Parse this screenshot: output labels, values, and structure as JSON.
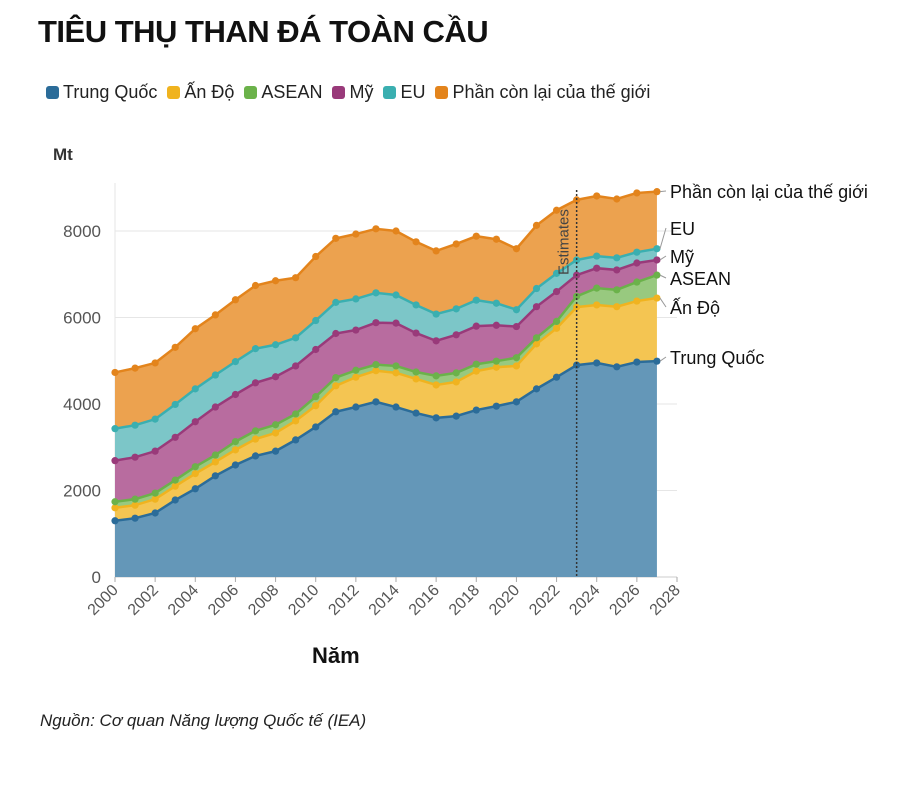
{
  "chart_data": {
    "type": "area",
    "stacked": true,
    "title": "TIÊU THỤ THAN ĐÁ TOÀN CẦU",
    "ylabel": "Mt",
    "xlabel": "Năm",
    "source": "Nguồn: Cơ quan Năng lượng Quốc tế (IEA)",
    "annotation": "Estimates",
    "annotation_x": 2023,
    "ylim": [
      0,
      9000
    ],
    "xlim": [
      2000,
      2028
    ],
    "yticks": [
      0,
      2000,
      4000,
      6000,
      8000
    ],
    "xticks": [
      2000,
      2002,
      2004,
      2006,
      2008,
      2010,
      2012,
      2014,
      2016,
      2018,
      2020,
      2022,
      2024,
      2026,
      2028
    ],
    "grid": true,
    "legend_position": "top",
    "x": [
      2000,
      2001,
      2002,
      2003,
      2004,
      2005,
      2006,
      2007,
      2008,
      2009,
      2010,
      2011,
      2012,
      2013,
      2014,
      2015,
      2016,
      2017,
      2018,
      2019,
      2020,
      2021,
      2022,
      2023,
      2024,
      2025,
      2026,
      2027
    ],
    "series": [
      {
        "name": "Trung Quốc",
        "end_label": "Trung Quốc",
        "line": "#2b6c99",
        "fill": "#6497b8",
        "values": [
          1300,
          1360,
          1480,
          1780,
          2040,
          2340,
          2590,
          2800,
          2910,
          3170,
          3470,
          3820,
          3930,
          4050,
          3930,
          3790,
          3680,
          3720,
          3860,
          3950,
          4050,
          4350,
          4620,
          4900,
          4950,
          4860,
          4970,
          4990
        ]
      },
      {
        "name": "Ấn Độ",
        "end_label": "Ấn Độ",
        "line": "#f0b31f",
        "fill": "#f4c552",
        "values": [
          300,
          300,
          320,
          320,
          350,
          320,
          350,
          390,
          420,
          440,
          490,
          600,
          690,
          720,
          790,
          790,
          760,
          790,
          900,
          900,
          830,
          1040,
          1130,
          1340,
          1340,
          1390,
          1410,
          1460
        ]
      },
      {
        "name": "ASEAN",
        "end_label": "ASEAN",
        "line": "#6bb24a",
        "fill": "#98c97f",
        "values": [
          140,
          140,
          140,
          140,
          160,
          160,
          190,
          190,
          190,
          160,
          210,
          190,
          160,
          140,
          160,
          160,
          210,
          210,
          160,
          140,
          190,
          140,
          160,
          250,
          390,
          390,
          440,
          530
        ]
      },
      {
        "name": "Mỹ",
        "end_label": "Mỹ",
        "line": "#993a7a",
        "fill": "#b86c9f",
        "values": [
          950,
          970,
          970,
          990,
          1040,
          1110,
          1090,
          1110,
          1110,
          1110,
          1090,
          1020,
          930,
          970,
          990,
          900,
          810,
          880,
          880,
          830,
          720,
          720,
          690,
          490,
          460,
          460,
          440,
          350
        ]
      },
      {
        "name": "EU",
        "end_label": "EU",
        "line": "#3aafb0",
        "fill": "#7cc6c8",
        "values": [
          740,
          740,
          740,
          760,
          760,
          740,
          760,
          790,
          740,
          650,
          670,
          720,
          720,
          690,
          650,
          650,
          620,
          600,
          600,
          510,
          390,
          420,
          420,
          350,
          280,
          280,
          250,
          260
        ]
      },
      {
        "name": "Phần còn lại của thế giới",
        "end_label": "Phần còn lại của thế giới",
        "line": "#e3841c",
        "fill": "#eca24f",
        "values": [
          1300,
          1320,
          1300,
          1320,
          1390,
          1390,
          1430,
          1460,
          1480,
          1390,
          1480,
          1480,
          1500,
          1480,
          1480,
          1460,
          1460,
          1500,
          1480,
          1480,
          1410,
          1460,
          1460,
          1390,
          1390,
          1360,
          1370,
          1320
        ]
      }
    ]
  }
}
